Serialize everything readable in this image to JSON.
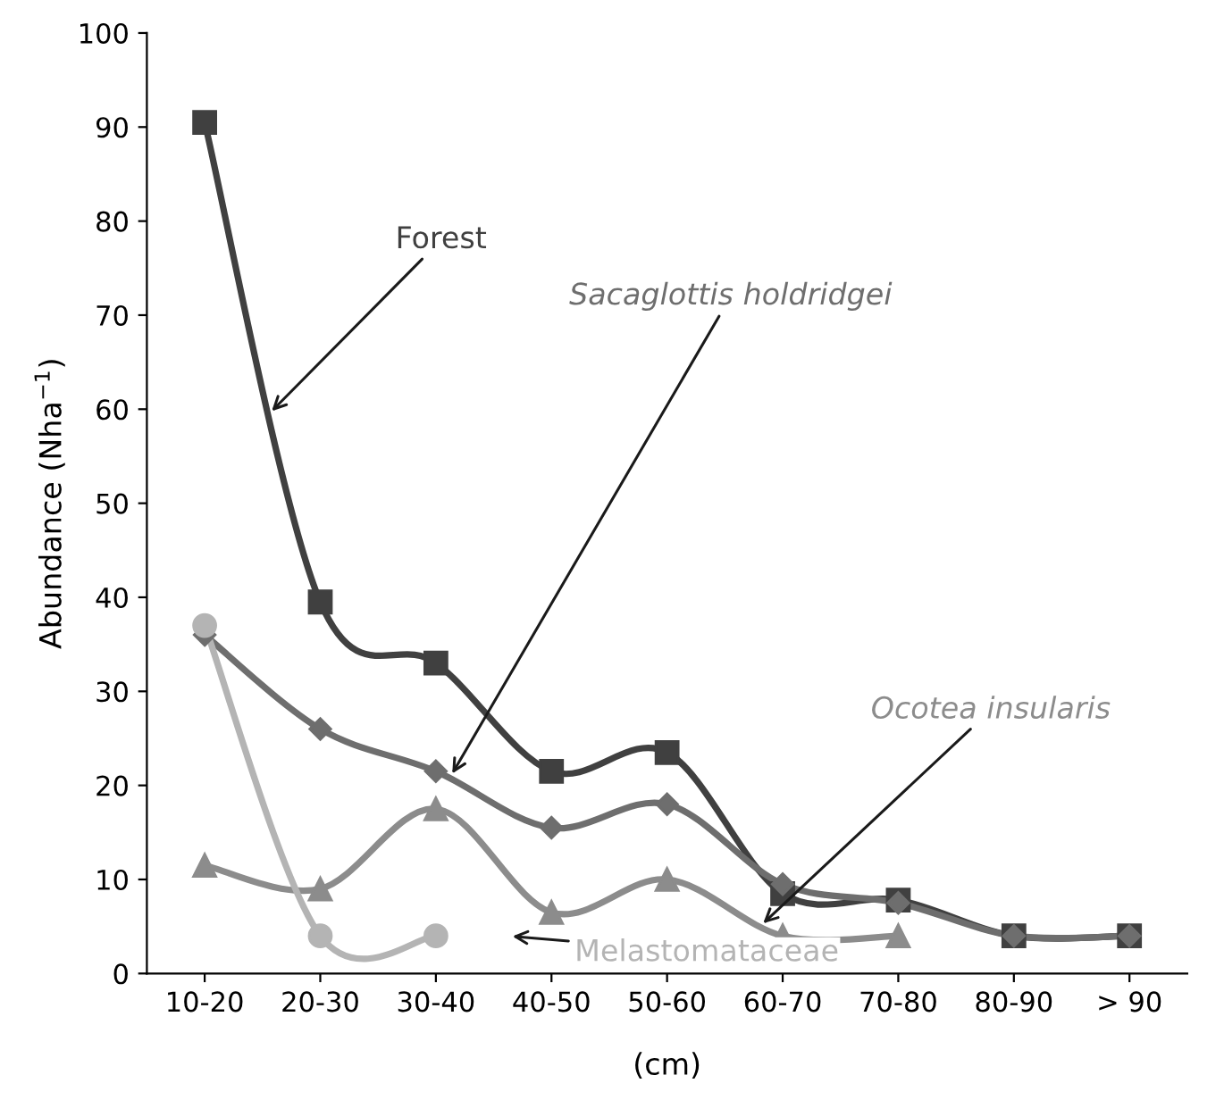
{
  "chart_data": {
    "type": "line",
    "xlabel": "(cm)",
    "ylabel": "Abundance (Nha$^{−1}$)",
    "categories": [
      "10-20",
      "20-30",
      "30-40",
      "40-50",
      "50-60",
      "60-70",
      "70-80",
      "80-90",
      "> 90"
    ],
    "series": [
      {
        "name": "Forest",
        "color": "#404040",
        "marker": "square",
        "values": [
          90.5,
          39.5,
          33,
          21.5,
          23.5,
          8.5,
          7.8,
          4,
          4
        ]
      },
      {
        "name": "Sacaglottis holdridgei",
        "color": "#6e6e6e",
        "marker": "diamond",
        "values": [
          36,
          26,
          21.5,
          15.5,
          18,
          9.5,
          7.5,
          4,
          4
        ]
      },
      {
        "name": "Ocotea insularis",
        "color": "#8c8c8c",
        "marker": "triangle",
        "values": [
          11.5,
          9,
          17.5,
          6.5,
          10,
          4,
          4,
          null,
          null
        ]
      },
      {
        "name": "Melastomataceae",
        "color": "#b4b4b4",
        "marker": "circle",
        "values": [
          37,
          4,
          4,
          null,
          null,
          null,
          null,
          null,
          null
        ]
      }
    ],
    "ylim": [
      0,
      100
    ],
    "yticks": [
      0,
      10,
      20,
      30,
      40,
      50,
      60,
      70,
      80,
      90,
      100
    ],
    "grid": false,
    "legend": false,
    "line_style": "solid"
  }
}
